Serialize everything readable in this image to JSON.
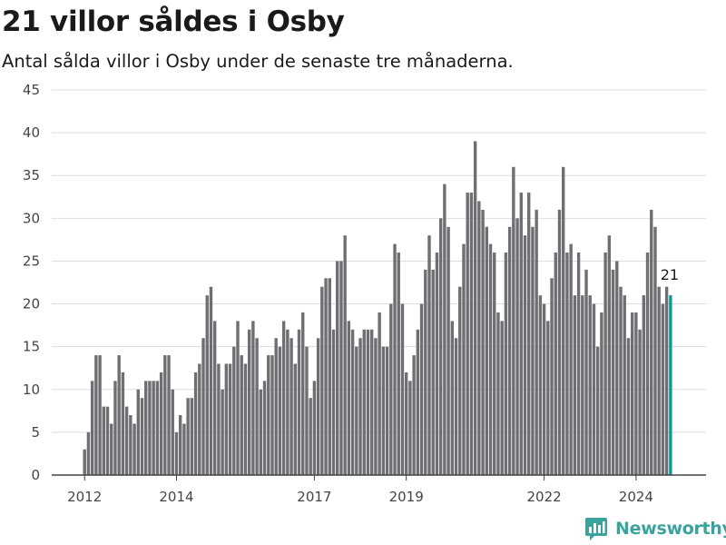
{
  "header": {
    "title": "21 villor såldes i Osby",
    "subtitle": "Antal sålda villor i Osby under de senaste tre månaderna."
  },
  "brand": {
    "name": "Newsworthy",
    "icon": "newsworthy-logo-icon"
  },
  "colors": {
    "bar": "#6f6e73",
    "highlight": "#0f9a94",
    "brand": "#3aa39e"
  },
  "chart_data": {
    "type": "bar",
    "title": "21 villor såldes i Osby",
    "subtitle": "Antal sålda villor i Osby under de senaste tre månaderna.",
    "xlabel": "",
    "ylabel": "",
    "ylim": [
      0,
      45
    ],
    "yticks": [
      0,
      5,
      10,
      15,
      20,
      25,
      30,
      35,
      40,
      45
    ],
    "xticks": [
      "2012",
      "2014",
      "2017",
      "2019",
      "2022",
      "2024"
    ],
    "grid": true,
    "start": "2012-01",
    "interval": "month",
    "values": [
      3,
      5,
      11,
      14,
      14,
      8,
      8,
      6,
      11,
      14,
      12,
      8,
      7,
      6,
      10,
      9,
      11,
      11,
      11,
      11,
      12,
      14,
      14,
      10,
      5,
      7,
      6,
      9,
      9,
      12,
      13,
      16,
      21,
      22,
      18,
      13,
      10,
      13,
      13,
      15,
      18,
      14,
      13,
      17,
      18,
      16,
      10,
      11,
      14,
      14,
      16,
      15,
      18,
      17,
      16,
      13,
      17,
      19,
      15,
      9,
      11,
      16,
      22,
      23,
      23,
      17,
      25,
      25,
      28,
      18,
      17,
      15,
      16,
      17,
      17,
      17,
      16,
      19,
      15,
      15,
      20,
      27,
      26,
      20,
      12,
      11,
      14,
      17,
      20,
      24,
      28,
      24,
      26,
      30,
      34,
      29,
      18,
      16,
      22,
      27,
      33,
      33,
      39,
      32,
      31,
      29,
      27,
      26,
      19,
      18,
      26,
      29,
      36,
      30,
      33,
      28,
      33,
      29,
      31,
      21,
      20,
      18,
      23,
      26,
      31,
      36,
      26,
      27,
      21,
      26,
      21,
      24,
      21,
      20,
      15,
      19,
      26,
      28,
      24,
      25,
      22,
      21,
      16,
      19,
      19,
      17,
      21,
      26,
      31,
      29,
      22,
      20,
      22,
      21
    ],
    "highlight": {
      "value": 21,
      "label": "21"
    }
  }
}
